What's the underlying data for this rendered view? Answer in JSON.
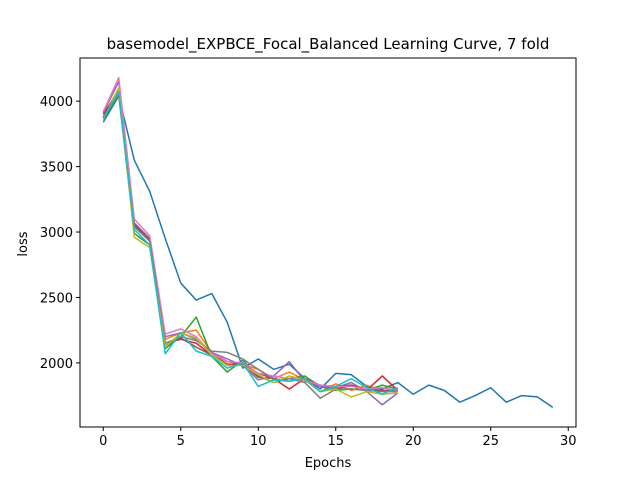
{
  "chart_data": {
    "type": "line",
    "title": "basemodel_EXPBCE_Focal_Balanced Learning Curve, 7 fold",
    "xlabel": "Epochs",
    "ylabel": "loss",
    "xlim": [
      -1.5,
      30.5
    ],
    "ylim": [
      1510,
      4330
    ],
    "xticks": [
      0,
      5,
      10,
      15,
      20,
      25,
      30
    ],
    "yticks": [
      2000,
      2500,
      3000,
      3500,
      4000
    ],
    "grid": false,
    "legend": "none",
    "series": [
      {
        "color": "#1f77b4",
        "values": [
          3840,
          4040,
          3550,
          3310,
          2950,
          2610,
          2480,
          2530,
          2310,
          1960,
          2030,
          1950,
          1990,
          1880,
          1800,
          1920,
          1910,
          1820,
          1800,
          1850,
          1760,
          1830,
          1790,
          1700,
          1750,
          1810,
          1700,
          1750,
          1740,
          1660
        ]
      },
      {
        "color": "#ff7f0e",
        "values": [
          3880,
          4100,
          3050,
          2930,
          2180,
          2230,
          2250,
          2080,
          2010,
          1990,
          1950,
          1880,
          1930,
          1870,
          1780,
          1840,
          1790,
          1830,
          1780,
          1800
        ]
      },
      {
        "color": "#2ca02c",
        "values": [
          3860,
          4050,
          2990,
          2900,
          2110,
          2200,
          2350,
          2050,
          1930,
          2020,
          1900,
          1850,
          1880,
          1900,
          1820,
          1790,
          1800,
          1790,
          1830,
          1800
        ]
      },
      {
        "color": "#d62728",
        "values": [
          3900,
          4080,
          3050,
          2950,
          2150,
          2180,
          2150,
          2060,
          1990,
          1990,
          1920,
          1880,
          1800,
          1880,
          1820,
          1800,
          1830,
          1790,
          1900,
          1790
        ]
      },
      {
        "color": "#9467bd",
        "values": [
          3910,
          4150,
          3070,
          2950,
          2200,
          2230,
          2180,
          2080,
          2030,
          1980,
          1870,
          1900,
          2010,
          1860,
          1820,
          1810,
          1850,
          1780,
          1680,
          1770
        ]
      },
      {
        "color": "#8c564b",
        "values": [
          3880,
          4060,
          3060,
          2940,
          2130,
          2190,
          2120,
          2060,
          2010,
          1990,
          1890,
          1880,
          1860,
          1880,
          1830,
          1820,
          1830,
          1800,
          1790,
          1790
        ]
      },
      {
        "color": "#e377c2",
        "values": [
          3920,
          4180,
          3100,
          2970,
          2220,
          2260,
          2200,
          2070,
          2010,
          2000,
          1920,
          1900,
          1880,
          1870,
          1830,
          1820,
          1820,
          1800,
          1810,
          1790
        ]
      },
      {
        "color": "#7f7f7f",
        "values": [
          3870,
          4060,
          3040,
          2930,
          2150,
          2200,
          2170,
          2090,
          2080,
          2030,
          1950,
          1870,
          1880,
          1850,
          1730,
          1800,
          1800,
          1790,
          1780,
          1780
        ]
      },
      {
        "color": "#bcbd22",
        "values": [
          3860,
          4100,
          2960,
          2880,
          2120,
          2230,
          2190,
          2060,
          1980,
          1980,
          1910,
          1850,
          1900,
          1870,
          1780,
          1800,
          1740,
          1780,
          1760,
          1770
        ]
      },
      {
        "color": "#17becf",
        "values": [
          3870,
          4070,
          3020,
          2900,
          2070,
          2230,
          2090,
          2050,
          1960,
          2000,
          1820,
          1870,
          1860,
          1880,
          1780,
          1820,
          1880,
          1810,
          1760,
          1810
        ]
      }
    ]
  }
}
